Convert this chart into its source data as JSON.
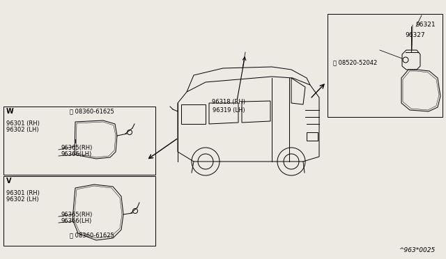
{
  "bg_color": "#ede9e3",
  "part_number_bottom_right": "^963*0025",
  "left_box_top_label": "W",
  "left_box_bot_label": "V",
  "left_box_top_screw": "Ⓢ 08360-61625",
  "left_box_bot_screw": "Ⓢ 08360-61625",
  "right_box_screw": "Ⓢ 08520-52042",
  "parts_left_top": [
    "96301 (RH)",
    "96302 (LH)",
    "96365(RH)",
    "96366(LH)"
  ],
  "parts_left_bot": [
    "96301 (RH)",
    "96302 (LH)",
    "96365(RH)",
    "96366(LH)"
  ],
  "parts_right": [
    "96321",
    "96327"
  ],
  "mirror_label": "96318 (RH)\n96319 (LH)"
}
